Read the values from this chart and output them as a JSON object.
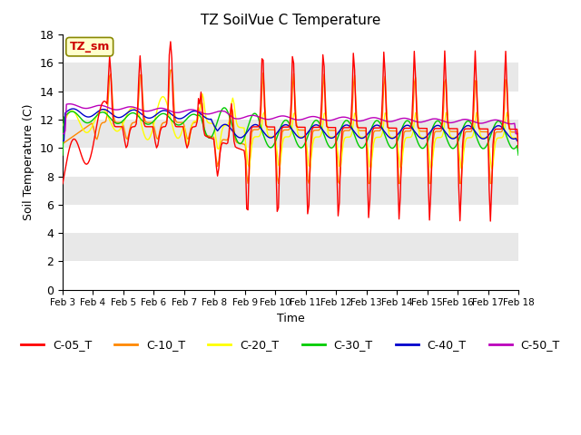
{
  "title": "TZ SoilVue C Temperature",
  "xlabel": "Time",
  "ylabel": "Soil Temperature (C)",
  "ylim": [
    0,
    18
  ],
  "yticks": [
    0,
    2,
    4,
    6,
    8,
    10,
    12,
    14,
    16,
    18
  ],
  "series_colors": {
    "C-05_T": "#ff0000",
    "C-10_T": "#ff8800",
    "C-20_T": "#ffff00",
    "C-30_T": "#00cc00",
    "C-40_T": "#0000cc",
    "C-50_T": "#bb00bb"
  },
  "legend_label": "TZ_sm",
  "background_color": "#ffffff",
  "plot_bg_color": "#e8e8e8",
  "grid_color": "#ffffff",
  "x_start": 3,
  "x_end": 18,
  "xtick_labels": [
    "Feb 3",
    "Feb 4",
    "Feb 5",
    "Feb 6",
    "Feb 7",
    "Feb 8",
    "Feb 9",
    "Feb 10",
    "Feb 11",
    "Feb 12",
    "Feb 13",
    "Feb 14",
    "Feb 15",
    "Feb 16",
    "Feb 17",
    "Feb 18"
  ],
  "xtick_positions": [
    3,
    4,
    5,
    6,
    7,
    8,
    9,
    10,
    11,
    12,
    13,
    14,
    15,
    16,
    17,
    18
  ]
}
